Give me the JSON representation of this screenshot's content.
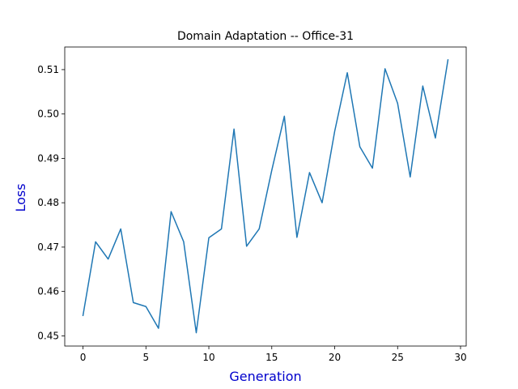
{
  "chart_data": {
    "type": "line",
    "title": "Domain Adaptation -- Office-31",
    "xlabel": "Generation",
    "ylabel": "Loss",
    "label_color": "#0000cc",
    "xlim": [
      -1.45,
      30.45
    ],
    "ylim": [
      0.4477,
      0.5151
    ],
    "xticks": [
      0,
      5,
      10,
      15,
      20,
      25,
      30
    ],
    "yticks": [
      0.45,
      0.46,
      0.47,
      0.48,
      0.49,
      0.5,
      0.51
    ],
    "ytick_labels": [
      "0.45",
      "0.46",
      "0.47",
      "0.48",
      "0.49",
      "0.50",
      "0.51"
    ],
    "grid": false,
    "series": [
      {
        "color": "#1f77b4",
        "x": [
          0,
          1,
          2,
          3,
          4,
          5,
          6,
          7,
          8,
          9,
          10,
          11,
          12,
          13,
          14,
          15,
          16,
          17,
          18,
          19,
          20,
          21,
          22,
          23,
          24,
          25,
          26,
          27,
          28,
          29
        ],
        "y": [
          0.4546,
          0.4712,
          0.4673,
          0.4741,
          0.4575,
          0.4566,
          0.4517,
          0.478,
          0.4712,
          0.4507,
          0.4721,
          0.4741,
          0.4966,
          0.4702,
          0.4741,
          0.4873,
          0.4995,
          0.4722,
          0.4868,
          0.48,
          0.4961,
          0.5093,
          0.4926,
          0.4878,
          0.5102,
          0.5024,
          0.4858,
          0.5063,
          0.4946,
          0.5122
        ]
      }
    ]
  }
}
